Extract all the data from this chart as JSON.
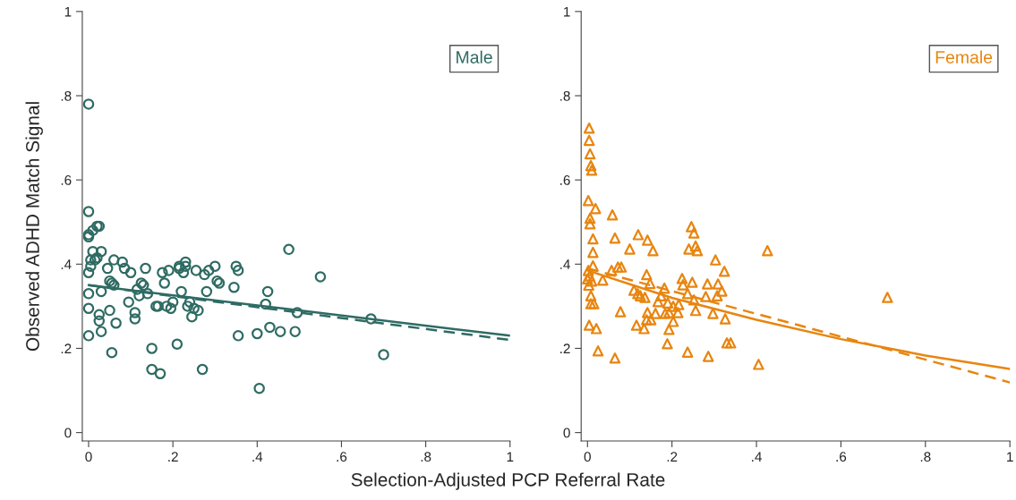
{
  "chart_data": [
    {
      "type": "scatter",
      "ylabel": "Observed ADHD Match Signal",
      "xlabel": "Selection-Adjusted PCP Referral Rate",
      "xlim": [
        -0.015,
        1
      ],
      "ylim": [
        -0.02,
        1
      ],
      "xticks": [
        0,
        {
          "value": 0.2,
          "label": ".2"
        },
        {
          "value": 0.4,
          "label": ".4"
        },
        {
          "value": 0.6,
          "label": ".6"
        },
        {
          "value": 0.8,
          "label": ".8"
        },
        1
      ],
      "yticks": [
        0,
        {
          "value": 0.2,
          "label": ".2"
        },
        {
          "value": 0.4,
          "label": ".4"
        },
        {
          "value": 0.6,
          "label": ".6"
        },
        {
          "value": 0.8,
          "label": ".8"
        },
        1
      ],
      "grid": false,
      "series": [
        {
          "name": "Male",
          "marker": "circle",
          "color": "#2e6b63",
          "x": [
            0,
            0,
            0,
            0,
            0.01,
            0.02,
            0.025,
            0.01,
            0.005,
            0.015,
            0,
            0.005,
            0,
            0,
            0,
            0.03,
            0.02,
            0.03,
            0.025,
            0.025,
            0.03,
            0.045,
            0.05,
            0.055,
            0.06,
            0.06,
            0.05,
            0.055,
            0.065,
            0.08,
            0.085,
            0.095,
            0.1,
            0.11,
            0.11,
            0.115,
            0.12,
            0.125,
            0.13,
            0.135,
            0.14,
            0.15,
            0.15,
            0.16,
            0.165,
            0.17,
            0.175,
            0.18,
            0.185,
            0.19,
            0.195,
            0.2,
            0.21,
            0.215,
            0.215,
            0.22,
            0.225,
            0.23,
            0.23,
            0.235,
            0.24,
            0.245,
            0.25,
            0.255,
            0.26,
            0.27,
            0.275,
            0.28,
            0.285,
            0.3,
            0.305,
            0.31,
            0.35,
            0.355,
            0.355,
            0.345,
            0.4,
            0.405,
            0.42,
            0.425,
            0.43,
            0.455,
            0.475,
            0.49,
            0.495,
            0.55,
            0.67,
            0.7
          ],
          "values": [
            0.78,
            0.525,
            0.47,
            0.465,
            0.48,
            0.49,
            0.49,
            0.43,
            0.41,
            0.41,
            0.38,
            0.395,
            0.33,
            0.295,
            0.23,
            0.43,
            0.415,
            0.335,
            0.28,
            0.265,
            0.24,
            0.39,
            0.36,
            0.355,
            0.35,
            0.41,
            0.29,
            0.19,
            0.26,
            0.405,
            0.39,
            0.31,
            0.38,
            0.285,
            0.27,
            0.34,
            0.325,
            0.355,
            0.35,
            0.39,
            0.33,
            0.2,
            0.15,
            0.3,
            0.3,
            0.14,
            0.38,
            0.355,
            0.3,
            0.385,
            0.295,
            0.31,
            0.21,
            0.39,
            0.395,
            0.335,
            0.38,
            0.405,
            0.395,
            0.3,
            0.31,
            0.275,
            0.295,
            0.385,
            0.29,
            0.15,
            0.375,
            0.335,
            0.385,
            0.395,
            0.36,
            0.355,
            0.395,
            0.385,
            0.23,
            0.345,
            0.235,
            0.105,
            0.305,
            0.335,
            0.25,
            0.24,
            0.435,
            0.24,
            0.285,
            0.37,
            0.27,
            0.185
          ]
        },
        {
          "type": "line",
          "color": "#2e6b63",
          "line_style": "solid",
          "x": [
            0,
            0.5,
            1
          ],
          "values": [
            0.35,
            0.29,
            0.23
          ]
        },
        {
          "type": "line",
          "color": "#2e6b63",
          "line_style": "dashed",
          "x": [
            0,
            0.5,
            1
          ],
          "values": [
            0.35,
            0.285,
            0.22
          ]
        }
      ]
    },
    {
      "type": "scatter",
      "xlim": [
        -0.015,
        1
      ],
      "ylim": [
        -0.02,
        1
      ],
      "xticks": [
        0,
        {
          "value": 0.2,
          "label": ".2"
        },
        {
          "value": 0.4,
          "label": ".4"
        },
        {
          "value": 0.6,
          "label": ".6"
        },
        {
          "value": 0.8,
          "label": ".8"
        },
        1
      ],
      "yticks": [
        0,
        {
          "value": 0.2,
          "label": ".2"
        },
        {
          "value": 0.4,
          "label": ".4"
        },
        {
          "value": 0.6,
          "label": ".6"
        },
        {
          "value": 0.8,
          "label": ".8"
        },
        1
      ],
      "grid": false,
      "series": [
        {
          "name": "Female",
          "marker": "triangle",
          "color": "#e8850f",
          "x": [
            0.004,
            0.004,
            0.006,
            0.008,
            0.01,
            0.002,
            0.019,
            0.006,
            0.006,
            0.059,
            0.013,
            0.065,
            0.12,
            0.142,
            0.246,
            0.252,
            0.1,
            0.426,
            0.013,
            0.155,
            0.24,
            0.256,
            0.26,
            0.303,
            0.324,
            0.013,
            0.002,
            0.0,
            0.005,
            0.01,
            0.003,
            0.036,
            0.057,
            0.072,
            0.08,
            0.14,
            0.148,
            0.11,
            0.119,
            0.125,
            0.136,
            0.182,
            0.174,
            0.167,
            0.19,
            0.224,
            0.226,
            0.248,
            0.237,
            0.252,
            0.216,
            0.203,
            0.284,
            0.309,
            0.318,
            0.307,
            0.28,
            0.256,
            0.297,
            0.326,
            0.214,
            0.193,
            0.184,
            0.203,
            0.193,
            0.161,
            0.142,
            0.14,
            0.15,
            0.116,
            0.134,
            0.078,
            0.008,
            0.008,
            0.015,
            0.004,
            0.021,
            0.025,
            0.065,
            0.189,
            0.237,
            0.286,
            0.33,
            0.339,
            0.405,
            0.71
          ],
          "values": [
            0.723,
            0.694,
            0.662,
            0.634,
            0.623,
            0.551,
            0.532,
            0.509,
            0.496,
            0.517,
            0.46,
            0.462,
            0.47,
            0.457,
            0.489,
            0.474,
            0.436,
            0.432,
            0.428,
            0.432,
            0.436,
            0.443,
            0.432,
            0.41,
            0.383,
            0.396,
            0.385,
            0.365,
            0.372,
            0.36,
            0.35,
            0.362,
            0.385,
            0.393,
            0.393,
            0.375,
            0.354,
            0.338,
            0.33,
            0.325,
            0.321,
            0.343,
            0.325,
            0.311,
            0.308,
            0.366,
            0.351,
            0.357,
            0.33,
            0.315,
            0.304,
            0.3,
            0.353,
            0.353,
            0.336,
            0.325,
            0.323,
            0.29,
            0.283,
            0.27,
            0.285,
            0.285,
            0.283,
            0.264,
            0.245,
            0.283,
            0.285,
            0.268,
            0.268,
            0.255,
            0.247,
            0.287,
            0.325,
            0.306,
            0.306,
            0.255,
            0.247,
            0.194,
            0.177,
            0.211,
            0.191,
            0.181,
            0.213,
            0.213,
            0.162,
            0.321
          ]
        },
        {
          "type": "line",
          "color": "#e8850f",
          "line_style": "solid",
          "x": [
            0,
            0.2,
            0.4,
            0.6,
            0.8,
            1
          ],
          "values": [
            0.385,
            0.32,
            0.268,
            0.222,
            0.183,
            0.151
          ]
        },
        {
          "type": "line",
          "color": "#e8850f",
          "line_style": "dashed",
          "x": [
            0,
            0.5,
            1
          ],
          "values": [
            0.39,
            0.255,
            0.119
          ]
        }
      ]
    }
  ]
}
